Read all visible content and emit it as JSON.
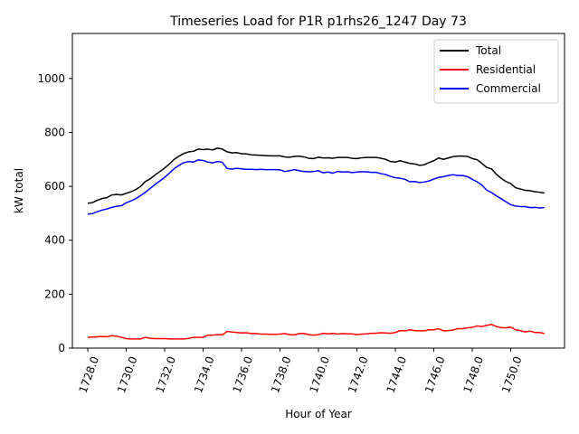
{
  "chart_data": {
    "type": "line",
    "title": "Timeseries Load for P1R p1rhs26_1247  Day 73",
    "xlabel": "Hour of Year",
    "ylabel": "kW total",
    "xlim": [
      1727.2,
      1752.8
    ],
    "ylim": [
      0,
      1167
    ],
    "x_ticks": [
      1728,
      1730,
      1732,
      1734,
      1736,
      1738,
      1740,
      1742,
      1744,
      1746,
      1748,
      1750
    ],
    "x_tick_labels": [
      "1728.0",
      "1730.0",
      "1732.0",
      "1734.0",
      "1736.0",
      "1738.0",
      "1740.0",
      "1742.0",
      "1744.0",
      "1746.0",
      "1748.0",
      "1750.0"
    ],
    "y_ticks": [
      0,
      200,
      400,
      600,
      800,
      1000
    ],
    "y_tick_labels": [
      "0",
      "200",
      "400",
      "600",
      "800",
      "1000"
    ],
    "legend_position": "top-right",
    "x": [
      1728.0,
      1728.25,
      1728.5,
      1728.75,
      1729.0,
      1729.25,
      1729.5,
      1729.75,
      1730.0,
      1730.25,
      1730.5,
      1730.75,
      1731.0,
      1731.25,
      1731.5,
      1731.75,
      1732.0,
      1732.25,
      1732.5,
      1732.75,
      1733.0,
      1733.25,
      1733.5,
      1733.75,
      1734.0,
      1734.25,
      1734.5,
      1734.75,
      1735.0,
      1735.25,
      1735.5,
      1735.75,
      1736.0,
      1736.25,
      1736.5,
      1736.75,
      1737.0,
      1737.25,
      1737.5,
      1737.75,
      1738.0,
      1738.25,
      1738.5,
      1738.75,
      1739.0,
      1739.25,
      1739.5,
      1739.75,
      1740.0,
      1740.25,
      1740.5,
      1740.75,
      1741.0,
      1741.25,
      1741.5,
      1741.75,
      1742.0,
      1742.25,
      1742.5,
      1742.75,
      1743.0,
      1743.25,
      1743.5,
      1743.75,
      1744.0,
      1744.25,
      1744.5,
      1744.75,
      1745.0,
      1745.25,
      1745.5,
      1745.75,
      1746.0,
      1746.25,
      1746.5,
      1746.75,
      1747.0,
      1747.25,
      1747.5,
      1747.75,
      1748.0,
      1748.25,
      1748.5,
      1748.75,
      1749.0,
      1749.25,
      1749.5,
      1749.75,
      1750.0,
      1750.25,
      1750.5,
      1750.75,
      1751.0,
      1751.25,
      1751.5,
      1751.75
    ],
    "series": [
      {
        "name": "Total",
        "color": "#000000",
        "values": [
          537,
          540,
          548,
          555,
          558,
          568,
          570,
          568,
          574,
          580,
          588,
          600,
          618,
          628,
          642,
          655,
          668,
          683,
          700,
          712,
          722,
          728,
          730,
          738,
          736,
          738,
          735,
          742,
          738,
          728,
          724,
          725,
          721,
          720,
          717,
          716,
          715,
          714,
          713,
          713,
          713,
          709,
          708,
          711,
          712,
          709,
          704,
          703,
          708,
          705,
          706,
          704,
          707,
          707,
          707,
          704,
          703,
          706,
          707,
          707,
          707,
          704,
          700,
          692,
          690,
          695,
          690,
          685,
          683,
          678,
          680,
          688,
          695,
          705,
          700,
          705,
          710,
          712,
          712,
          711,
          703,
          699,
          685,
          670,
          665,
          645,
          630,
          618,
          610,
          595,
          590,
          585,
          584,
          580,
          578,
          575
        ]
      },
      {
        "name": "Residential",
        "color": "#ff0000",
        "values": [
          40,
          41,
          42,
          43,
          42,
          46,
          44,
          40,
          35,
          34,
          34,
          34,
          40,
          36,
          35,
          35,
          35,
          34,
          34,
          34,
          34,
          36,
          40,
          40,
          40,
          48,
          48,
          50,
          49,
          62,
          60,
          58,
          56,
          57,
          54,
          54,
          52,
          52,
          51,
          51,
          52,
          54,
          50,
          49,
          54,
          54,
          50,
          48,
          50,
          55,
          53,
          55,
          52,
          54,
          53,
          53,
          50,
          52,
          53,
          55,
          55,
          57,
          56,
          55,
          58,
          65,
          64,
          68,
          65,
          64,
          64,
          68,
          68,
          72,
          64,
          65,
          67,
          72,
          72,
          75,
          77,
          82,
          80,
          84,
          88,
          80,
          76,
          75,
          78,
          68,
          65,
          60,
          63,
          58,
          58,
          54
        ]
      },
      {
        "name": "Commercial",
        "color": "#0000ff",
        "values": [
          497,
          499,
          506,
          512,
          516,
          522,
          526,
          528,
          539,
          546,
          554,
          566,
          578,
          592,
          607,
          620,
          633,
          649,
          666,
          678,
          688,
          692,
          690,
          698,
          696,
          690,
          687,
          692,
          689,
          666,
          664,
          667,
          665,
          663,
          663,
          662,
          663,
          662,
          662,
          662,
          661,
          655,
          658,
          662,
          658,
          655,
          654,
          655,
          658,
          650,
          653,
          649,
          655,
          653,
          654,
          651,
          653,
          654,
          654,
          652,
          652,
          647,
          644,
          637,
          632,
          630,
          626,
          617,
          618,
          614,
          616,
          620,
          627,
          633,
          636,
          640,
          643,
          640,
          640,
          636,
          626,
          617,
          605,
          586,
          577,
          565,
          554,
          543,
          532,
          527,
          525,
          525,
          521,
          522,
          520,
          521
        ]
      }
    ]
  }
}
